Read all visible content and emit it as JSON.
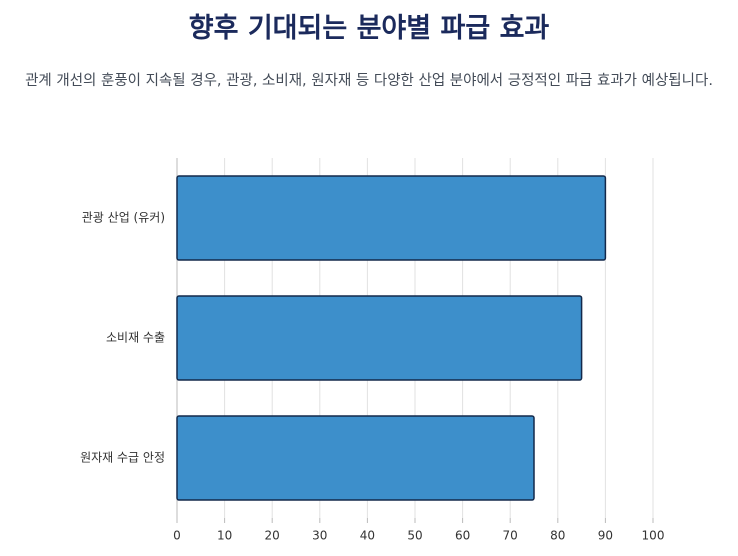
{
  "chart_data": {
    "type": "bar",
    "orientation": "horizontal",
    "title": "향후 기대되는 분야별 파급 효과",
    "subtitle": "관계 개선의 훈풍이 지속될 경우, 관광, 소비재, 원자재 등 다양한 산업 분야에서 긍정적인 파급 효과가 예상됩니다.",
    "categories": [
      "관광 산업 (유커)",
      "소비재 수출",
      "원자재 수급 안정"
    ],
    "values": [
      90,
      85,
      75
    ],
    "color": "#3d8fcb",
    "xlim": [
      0,
      100
    ],
    "xticks": [
      0,
      10,
      20,
      30,
      40,
      50,
      60,
      70,
      80,
      90,
      100
    ],
    "grid": true
  }
}
